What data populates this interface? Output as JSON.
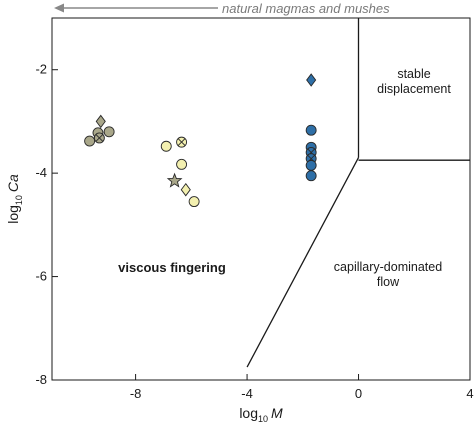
{
  "chart_data": {
    "type": "scatter",
    "xlabel_base": "log",
    "xlabel_sub": "10",
    "xlabel_var": "M",
    "ylabel_base": "log",
    "ylabel_sub": "10",
    "ylabel_var": "Ca",
    "xlim": [
      -11,
      4
    ],
    "ylim": [
      -8,
      -1
    ],
    "xticks": [
      -8,
      -4,
      0,
      4
    ],
    "yticks": [
      -2,
      -4,
      -6,
      -8
    ],
    "grid": false,
    "legend": "none",
    "banner": "natural magmas and mushes",
    "regions": [
      {
        "text": "viscous fingering",
        "bold": true,
        "lines": [
          "viscous fingering"
        ]
      },
      {
        "text": "stable displacement",
        "bold": false,
        "lines": [
          "stable",
          "displacement"
        ]
      },
      {
        "text": "capillary-dominated flow",
        "bold": false,
        "lines": [
          "capillary-dominated",
          "flow"
        ]
      }
    ],
    "boundaries": [
      {
        "points": [
          [
            -4,
            -7.75
          ],
          [
            0,
            -3.7
          ]
        ]
      },
      {
        "points": [
          [
            0,
            -1
          ],
          [
            0,
            -3.7
          ]
        ]
      },
      {
        "points": [
          [
            0,
            -3.75
          ],
          [
            4,
            -3.75
          ]
        ]
      }
    ],
    "series": [
      {
        "color": "#a9a78a",
        "points": [
          {
            "x": -9.65,
            "y": -3.38,
            "marker": "circle"
          },
          {
            "x": -9.35,
            "y": -3.22,
            "marker": "circle"
          },
          {
            "x": -9.3,
            "y": -3.32,
            "marker": "crossed-circle"
          },
          {
            "x": -9.25,
            "y": -3.0,
            "marker": "diamond"
          },
          {
            "x": -8.95,
            "y": -3.2,
            "marker": "circle"
          }
        ]
      },
      {
        "color": "#f3f0b0",
        "points": [
          {
            "x": -6.9,
            "y": -3.48,
            "marker": "circle"
          },
          {
            "x": -6.35,
            "y": -3.4,
            "marker": "crossed-circle"
          },
          {
            "x": -6.35,
            "y": -3.83,
            "marker": "circle"
          },
          {
            "x": -6.2,
            "y": -4.32,
            "marker": "diamond"
          },
          {
            "x": -6.6,
            "y": -4.15,
            "marker": "star"
          },
          {
            "x": -5.9,
            "y": -4.55,
            "marker": "circle"
          }
        ]
      },
      {
        "color": "#2e6fa7",
        "points": [
          {
            "x": -1.7,
            "y": -2.2,
            "marker": "diamond"
          },
          {
            "x": -1.7,
            "y": -3.17,
            "marker": "circle"
          },
          {
            "x": -1.7,
            "y": -3.5,
            "marker": "circle"
          },
          {
            "x": -1.7,
            "y": -3.6,
            "marker": "crossed-circle"
          },
          {
            "x": -1.7,
            "y": -3.72,
            "marker": "crossed-circle"
          },
          {
            "x": -1.7,
            "y": -3.85,
            "marker": "circle"
          },
          {
            "x": -1.7,
            "y": -4.05,
            "marker": "circle"
          }
        ]
      }
    ]
  }
}
